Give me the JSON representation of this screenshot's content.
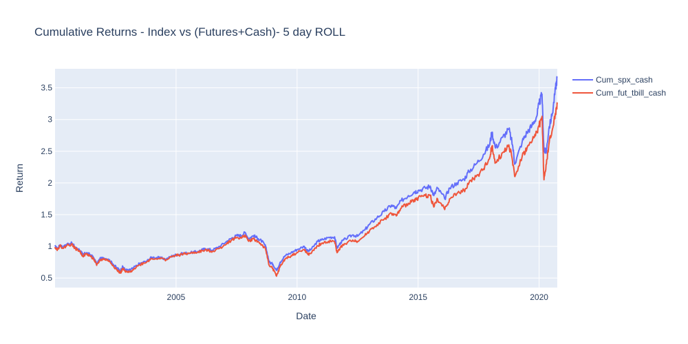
{
  "chart_data": {
    "type": "line",
    "title": "Cumulative Returns - Index vs (Futures+Cash)- 5 day ROLL",
    "xlabel": "Date",
    "ylabel": "Return",
    "xlim": [
      2000.0,
      2020.75
    ],
    "ylim": [
      0.35,
      3.8
    ],
    "x_ticks": [
      2005,
      2010,
      2015,
      2020
    ],
    "x_tick_labels": [
      "2005",
      "2010",
      "2015",
      "2020"
    ],
    "y_ticks": [
      0.5,
      1,
      1.5,
      2,
      2.5,
      3,
      3.5
    ],
    "y_tick_labels": [
      "0.5",
      "1",
      "1.5",
      "2",
      "2.5",
      "3",
      "3.5"
    ],
    "grid": true,
    "legend_position": "top-right, outside plot",
    "background_color": "#e5ecf6",
    "series": [
      {
        "name": "Cum_spx_cash",
        "color": "#636efa",
        "x": [
          2000.0,
          2000.1,
          2000.2,
          2000.35,
          2000.5,
          2000.7,
          2000.85,
          2001.0,
          2001.15,
          2001.3,
          2001.45,
          2001.6,
          2001.72,
          2001.85,
          2002.0,
          2002.2,
          2002.4,
          2002.55,
          2002.7,
          2002.8,
          2002.9,
          2003.05,
          2003.2,
          2003.5,
          2003.8,
          2004.0,
          2004.3,
          2004.6,
          2004.9,
          2005.1,
          2005.3,
          2005.6,
          2005.9,
          2006.1,
          2006.3,
          2006.5,
          2006.8,
          2007.1,
          2007.3,
          2007.5,
          2007.7,
          2007.85,
          2008.0,
          2008.2,
          2008.4,
          2008.55,
          2008.7,
          2008.85,
          2009.0,
          2009.15,
          2009.3,
          2009.5,
          2009.75,
          2010.0,
          2010.3,
          2010.45,
          2010.6,
          2010.85,
          2011.0,
          2011.3,
          2011.55,
          2011.65,
          2011.8,
          2012.0,
          2012.3,
          2012.5,
          2012.8,
          2013.0,
          2013.3,
          2013.6,
          2013.9,
          2014.1,
          2014.3,
          2014.6,
          2014.85,
          2015.0,
          2015.3,
          2015.5,
          2015.65,
          2015.8,
          2016.1,
          2016.3,
          2016.6,
          2016.9,
          2017.1,
          2017.4,
          2017.7,
          2017.95,
          2018.05,
          2018.2,
          2018.5,
          2018.75,
          2018.9,
          2019.0,
          2019.3,
          2019.5,
          2019.7,
          2019.9,
          2020.0,
          2020.12,
          2020.2,
          2020.3,
          2020.4,
          2020.55,
          2020.68,
          2020.75
        ],
        "values": [
          1.0,
          0.96,
          1.02,
          0.99,
          1.04,
          1.05,
          0.98,
          0.95,
          0.87,
          0.9,
          0.87,
          0.82,
          0.72,
          0.8,
          0.82,
          0.8,
          0.72,
          0.66,
          0.62,
          0.68,
          0.63,
          0.62,
          0.65,
          0.73,
          0.77,
          0.83,
          0.82,
          0.8,
          0.86,
          0.87,
          0.89,
          0.9,
          0.92,
          0.95,
          0.96,
          0.94,
          1.0,
          1.08,
          1.13,
          1.17,
          1.17,
          1.22,
          1.12,
          1.17,
          1.12,
          1.08,
          1.0,
          0.75,
          0.72,
          0.62,
          0.75,
          0.85,
          0.9,
          0.95,
          1.0,
          0.92,
          0.96,
          1.08,
          1.1,
          1.14,
          1.15,
          0.97,
          1.06,
          1.12,
          1.18,
          1.16,
          1.26,
          1.35,
          1.45,
          1.55,
          1.65,
          1.6,
          1.72,
          1.8,
          1.86,
          1.88,
          1.92,
          1.95,
          1.8,
          1.92,
          1.75,
          1.92,
          2.0,
          2.06,
          2.18,
          2.3,
          2.45,
          2.6,
          2.8,
          2.55,
          2.72,
          2.85,
          2.6,
          2.3,
          2.65,
          2.8,
          2.9,
          3.05,
          3.25,
          3.4,
          2.5,
          2.5,
          2.85,
          3.1,
          3.5,
          3.67
        ]
      },
      {
        "name": "Cum_fut_tbill_cash",
        "color": "#ef553b",
        "x": [
          2000.0,
          2000.1,
          2000.2,
          2000.35,
          2000.5,
          2000.7,
          2000.85,
          2001.0,
          2001.15,
          2001.3,
          2001.45,
          2001.6,
          2001.72,
          2001.85,
          2002.0,
          2002.2,
          2002.4,
          2002.55,
          2002.7,
          2002.8,
          2002.9,
          2003.05,
          2003.2,
          2003.5,
          2003.8,
          2004.0,
          2004.3,
          2004.6,
          2004.9,
          2005.1,
          2005.3,
          2005.6,
          2005.9,
          2006.1,
          2006.3,
          2006.5,
          2006.8,
          2007.1,
          2007.3,
          2007.5,
          2007.7,
          2007.85,
          2008.0,
          2008.2,
          2008.4,
          2008.55,
          2008.7,
          2008.85,
          2009.0,
          2009.15,
          2009.3,
          2009.5,
          2009.75,
          2010.0,
          2010.3,
          2010.45,
          2010.6,
          2010.85,
          2011.0,
          2011.3,
          2011.55,
          2011.65,
          2011.8,
          2012.0,
          2012.3,
          2012.5,
          2012.8,
          2013.0,
          2013.3,
          2013.6,
          2013.9,
          2014.1,
          2014.3,
          2014.6,
          2014.85,
          2015.0,
          2015.3,
          2015.5,
          2015.65,
          2015.8,
          2016.1,
          2016.3,
          2016.6,
          2016.9,
          2017.1,
          2017.4,
          2017.7,
          2017.95,
          2018.05,
          2018.2,
          2018.5,
          2018.75,
          2018.9,
          2019.0,
          2019.3,
          2019.5,
          2019.7,
          2019.9,
          2020.0,
          2020.12,
          2020.2,
          2020.3,
          2020.4,
          2020.55,
          2020.68,
          2020.75
        ],
        "values": [
          0.99,
          0.95,
          1.01,
          0.97,
          1.02,
          1.03,
          0.96,
          0.93,
          0.85,
          0.88,
          0.85,
          0.8,
          0.7,
          0.78,
          0.8,
          0.78,
          0.7,
          0.63,
          0.58,
          0.65,
          0.6,
          0.59,
          0.63,
          0.71,
          0.76,
          0.81,
          0.81,
          0.79,
          0.85,
          0.86,
          0.88,
          0.89,
          0.91,
          0.93,
          0.94,
          0.92,
          0.97,
          1.05,
          1.1,
          1.14,
          1.13,
          1.18,
          1.08,
          1.12,
          1.07,
          1.02,
          0.95,
          0.7,
          0.65,
          0.53,
          0.68,
          0.8,
          0.85,
          0.9,
          0.95,
          0.87,
          0.9,
          1.01,
          1.04,
          1.08,
          1.08,
          0.9,
          0.99,
          1.04,
          1.1,
          1.08,
          1.17,
          1.25,
          1.34,
          1.43,
          1.52,
          1.48,
          1.6,
          1.68,
          1.74,
          1.76,
          1.8,
          1.8,
          1.62,
          1.75,
          1.58,
          1.75,
          1.83,
          1.88,
          2.0,
          2.1,
          2.22,
          2.38,
          2.58,
          2.33,
          2.48,
          2.6,
          2.35,
          2.1,
          2.42,
          2.55,
          2.65,
          2.8,
          2.9,
          3.05,
          2.05,
          2.3,
          2.6,
          2.85,
          3.1,
          3.25
        ]
      }
    ]
  }
}
